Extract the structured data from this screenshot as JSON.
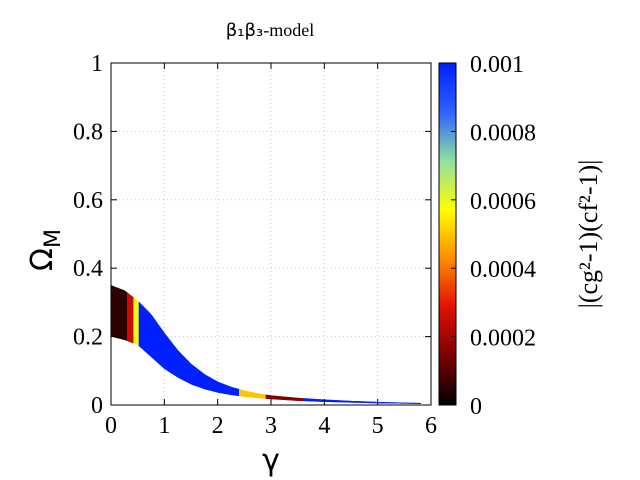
{
  "chart_data": {
    "type": "heatmap",
    "title_sym": "β₁β₃",
    "title_rest": "-model",
    "xlabel": "γ",
    "ylabel_main": "Ω",
    "ylabel_sub": "M",
    "xlim": [
      0,
      6
    ],
    "ylim": [
      0,
      1
    ],
    "xticks": [
      0,
      1,
      2,
      3,
      4,
      5,
      6
    ],
    "yticks": [
      0,
      0.2,
      0.4,
      0.6,
      0.8,
      1
    ],
    "ytick_labels": [
      "0",
      "0.2",
      "0.4",
      "0.6",
      "0.8",
      "1"
    ],
    "grid": true,
    "colorbar": {
      "label": "|(cg²-1)(cf²-1)|",
      "ticks": [
        0,
        0.0002,
        0.0004,
        0.0006,
        0.0008,
        0.001
      ],
      "tick_labels": [
        "0",
        "0.0002",
        "0.0004",
        "0.0006",
        "0.0008",
        "0.001"
      ],
      "range": [
        0,
        0.001
      ],
      "colors": [
        "#000000",
        "#7a0000",
        "#e01000",
        "#ff8c00",
        "#ffff00",
        "#8fe0a0",
        "#3060ff",
        "#0020ff"
      ]
    },
    "band": {
      "gamma": [
        0,
        0.25,
        0.5,
        0.75,
        1,
        1.25,
        1.5,
        1.75,
        2,
        2.25,
        2.5,
        2.75,
        3,
        3.5,
        4,
        4.5,
        5,
        5.5,
        5.8
      ],
      "omega_upper": [
        0.35,
        0.335,
        0.305,
        0.265,
        0.21,
        0.16,
        0.12,
        0.09,
        0.068,
        0.053,
        0.042,
        0.034,
        0.028,
        0.021,
        0.016,
        0.012,
        0.009,
        0.007,
        0.006
      ],
      "omega_lower": [
        0.2,
        0.19,
        0.175,
        0.14,
        0.105,
        0.08,
        0.06,
        0.046,
        0.036,
        0.029,
        0.024,
        0.02,
        0.017,
        0.012,
        0.009,
        0.007,
        0.005,
        0.004,
        0.003
      ]
    },
    "value_regions": [
      {
        "gamma_range": [
          0,
          0.3
        ],
        "value": 5e-05
      },
      {
        "gamma_range": [
          0.3,
          0.42
        ],
        "value": 0.00025
      },
      {
        "gamma_range": [
          0.42,
          0.52
        ],
        "value": 0.0006
      },
      {
        "gamma_range": [
          0.52,
          2.4
        ],
        "value": 0.001
      },
      {
        "gamma_range": [
          2.4,
          2.9
        ],
        "value": 0.0005
      },
      {
        "gamma_range": [
          2.9,
          3.6
        ],
        "value": 0.00015
      },
      {
        "gamma_range": [
          3.6,
          5.8
        ],
        "value": 0.001
      }
    ]
  }
}
